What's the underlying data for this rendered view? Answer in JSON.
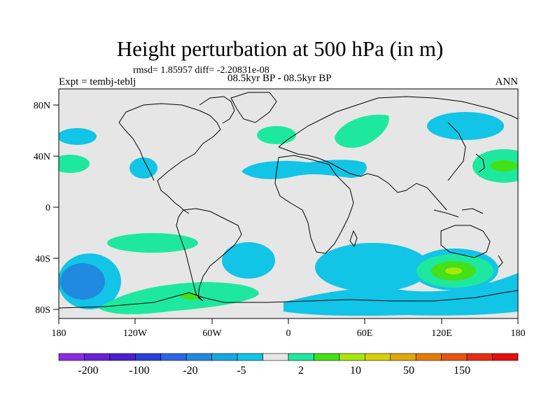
{
  "title": "Height perturbation at 500 hPa (in m)",
  "stats_line": "rmsd= 1.85957 diff= -2.20831e-08",
  "experiment": "Expt = tembj-teblj",
  "comparison": "08.5kyr BP - 08.5kyr BP",
  "season": "ANN",
  "lon_ticks": [
    "180",
    "120W",
    "60W",
    "0",
    "60E",
    "120E",
    "180"
  ],
  "lat_ticks": [
    "80N",
    "40N",
    "0",
    "40S",
    "80S"
  ],
  "colorbar": {
    "colors": [
      "#8a2be2",
      "#6a1fd8",
      "#4a1ecc",
      "#2c3ed8",
      "#2a66e6",
      "#1f8ae0",
      "#16a8e0",
      "#12c4e6",
      "#e6e6e6",
      "#1ee8a0",
      "#44e018",
      "#a8e60c",
      "#d8d00a",
      "#e0a808",
      "#e67c06",
      "#e85410",
      "#e82c14",
      "#e80c0c"
    ],
    "labels": [
      "-200",
      "-100",
      "-20",
      "-5",
      "2",
      "10",
      "50",
      "150"
    ]
  },
  "map": {
    "background": "#e6e6e6",
    "lon_range": [
      -180,
      180
    ],
    "lat_range": [
      -90,
      90
    ],
    "contour_colors": {
      "cyan": "#12c4e6",
      "blue": "#1f8ae0",
      "green": "#1ee8a0",
      "lime": "#44e018",
      "yellow": "#a8e60c"
    }
  }
}
